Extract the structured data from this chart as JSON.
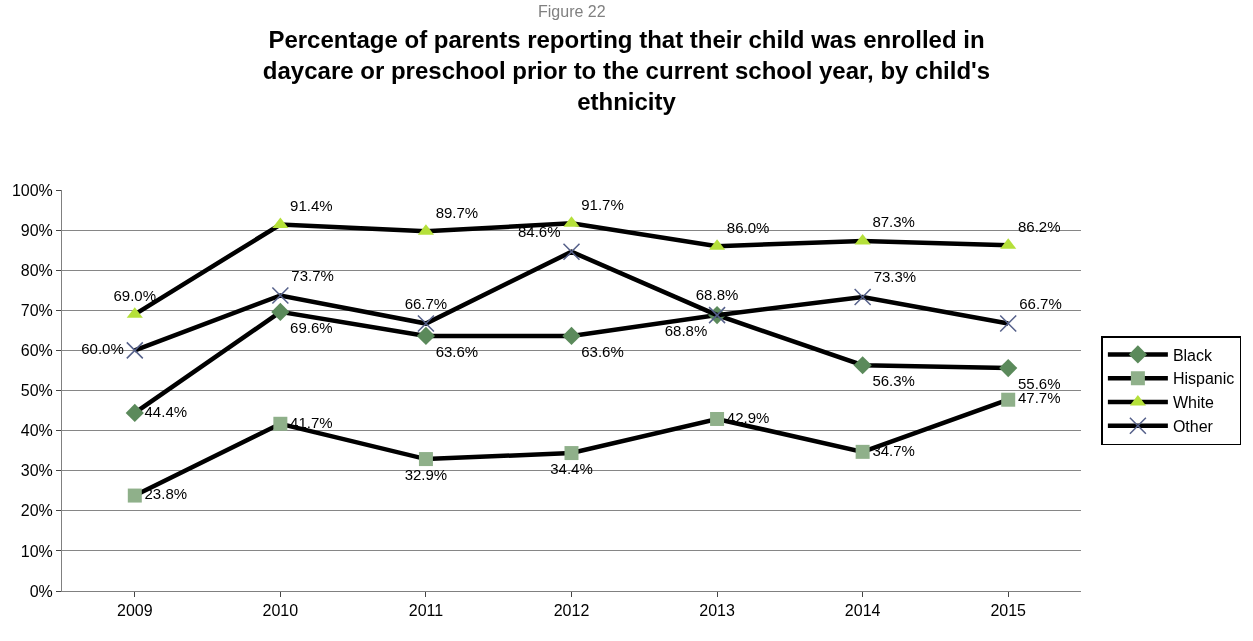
{
  "chart_data": {
    "type": "line",
    "title": "Percentage of parents reporting that their child was enrolled in daycare or preschool prior to the current school year, by child's ethnicity",
    "annotations": [
      "Figure 22"
    ],
    "categories": [
      "2009",
      "2010",
      "2011",
      "2012",
      "2013",
      "2014",
      "2015"
    ],
    "ylim": [
      0,
      100
    ],
    "yticks": [
      {
        "value": 0,
        "label": "0%"
      },
      {
        "value": 10,
        "label": "10%"
      },
      {
        "value": 20,
        "label": "20%"
      },
      {
        "value": 30,
        "label": "30%"
      },
      {
        "value": 40,
        "label": "40%"
      },
      {
        "value": 50,
        "label": "50%"
      },
      {
        "value": 60,
        "label": "60%"
      },
      {
        "value": 70,
        "label": "70%"
      },
      {
        "value": 80,
        "label": "80%"
      },
      {
        "value": 90,
        "label": "90%"
      },
      {
        "value": 100,
        "label": "100%"
      }
    ],
    "grid": "y",
    "legend": "right",
    "series": [
      {
        "name": "Black",
        "color": "#5b8a5b",
        "marker": "diamond",
        "values": [
          44.4,
          69.6,
          63.6,
          63.6,
          68.8,
          56.3,
          55.6
        ],
        "value_labels": [
          "44.4%",
          "69.6%",
          "63.6%",
          "63.6%",
          "68.8%",
          "56.3%",
          "55.6%"
        ]
      },
      {
        "name": "Hispanic",
        "color": "#8fb08a",
        "marker": "square",
        "values": [
          23.8,
          41.7,
          32.9,
          34.4,
          42.9,
          34.7,
          47.7
        ],
        "value_labels": [
          "23.8%",
          "41.7%",
          "32.9%",
          "34.4%",
          "42.9%",
          "34.7%",
          "47.7%"
        ]
      },
      {
        "name": "White",
        "color": "#b5e03a",
        "marker": "triangle",
        "values": [
          69.0,
          91.4,
          89.7,
          91.7,
          86.0,
          87.3,
          86.2
        ],
        "value_labels": [
          "69.0%",
          "91.4%",
          "89.7%",
          "91.7%",
          "86.0%",
          "87.3%",
          "86.2%"
        ]
      },
      {
        "name": "Other",
        "color": "#55608a",
        "marker": "cross",
        "values": [
          60.0,
          73.7,
          66.7,
          84.6,
          68.8,
          73.3,
          66.7
        ],
        "value_labels": [
          "60.0%",
          "73.7%",
          "66.7%",
          "84.6%",
          "68.8%",
          "73.3%",
          "66.7%"
        ]
      }
    ]
  }
}
